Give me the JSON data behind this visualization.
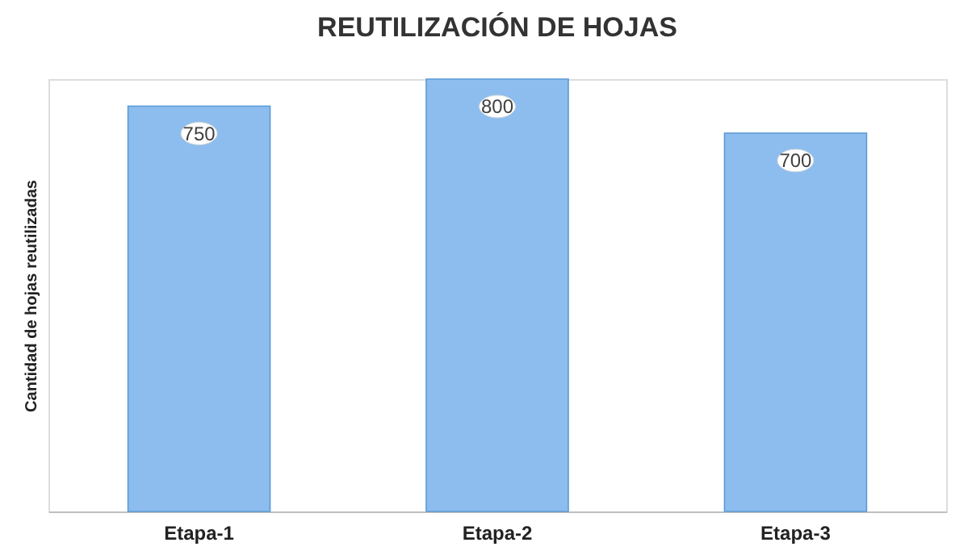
{
  "chart_data": {
    "type": "bar",
    "title": "REUTILIZACIÓN DE HOJAS",
    "ylabel": "Cantidad de hojas reutilizadas",
    "categories": [
      "Etapa-1",
      "Etapa-2",
      "Etapa-3"
    ],
    "values": [
      750,
      800,
      700
    ],
    "color": "#8dbdee",
    "data_labels": true,
    "grid": false
  }
}
